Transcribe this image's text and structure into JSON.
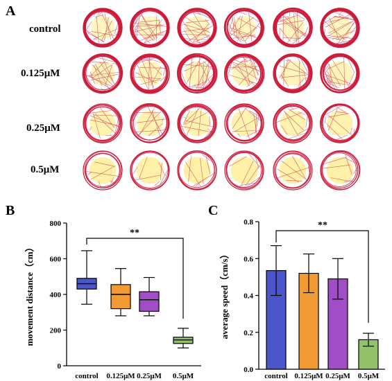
{
  "panel_a": {
    "letter": "A",
    "rows": [
      "control",
      "0.125μM",
      "0.25μM",
      "0.5μM"
    ],
    "trace_color": "#cc1a3a",
    "fill_color": "#fff2a6",
    "arena_fill_level": [
      0.35,
      0.5,
      0.75,
      0.95
    ]
  },
  "chart_data": [
    {
      "panel": "B",
      "type": "box",
      "categories": [
        "control",
        "0.125μM",
        "0.25μM",
        "0.5μM"
      ],
      "boxes": [
        {
          "min": 345,
          "q1": 430,
          "median": 460,
          "q3": 490,
          "max": 645,
          "color": "#4a56c9"
        },
        {
          "min": 280,
          "q1": 320,
          "median": 400,
          "q3": 455,
          "max": 545,
          "color": "#f29b35"
        },
        {
          "min": 280,
          "q1": 305,
          "median": 370,
          "q3": 415,
          "max": 495,
          "color": "#a04ec6"
        },
        {
          "min": 100,
          "q1": 125,
          "median": 145,
          "q3": 160,
          "max": 210,
          "color": "#94c26a"
        }
      ],
      "ylabel": "movement distance（cm）",
      "ylim": [
        0,
        800
      ],
      "yticks": [
        "0",
        "200",
        "400",
        "600",
        "800"
      ],
      "significance": {
        "label": "**",
        "from": "control",
        "to": "0.5μM"
      }
    },
    {
      "panel": "C",
      "type": "bar",
      "categories": [
        "control",
        "0.125μM",
        "0.25μM",
        "0.5μM"
      ],
      "values": [
        0.535,
        0.52,
        0.49,
        0.16
      ],
      "errors": [
        0.135,
        0.105,
        0.11,
        0.035
      ],
      "colors": [
        "#4a56c9",
        "#f29b35",
        "#a04ec6",
        "#94c26a"
      ],
      "ylabel": "average speed（cm/s）",
      "ylim": [
        0,
        0.8
      ],
      "yticks": [
        "0.0",
        "0.2",
        "0.4",
        "0.6",
        "0.8"
      ],
      "significance": {
        "label": "**",
        "from": "control",
        "to": "0.5μM"
      }
    }
  ]
}
